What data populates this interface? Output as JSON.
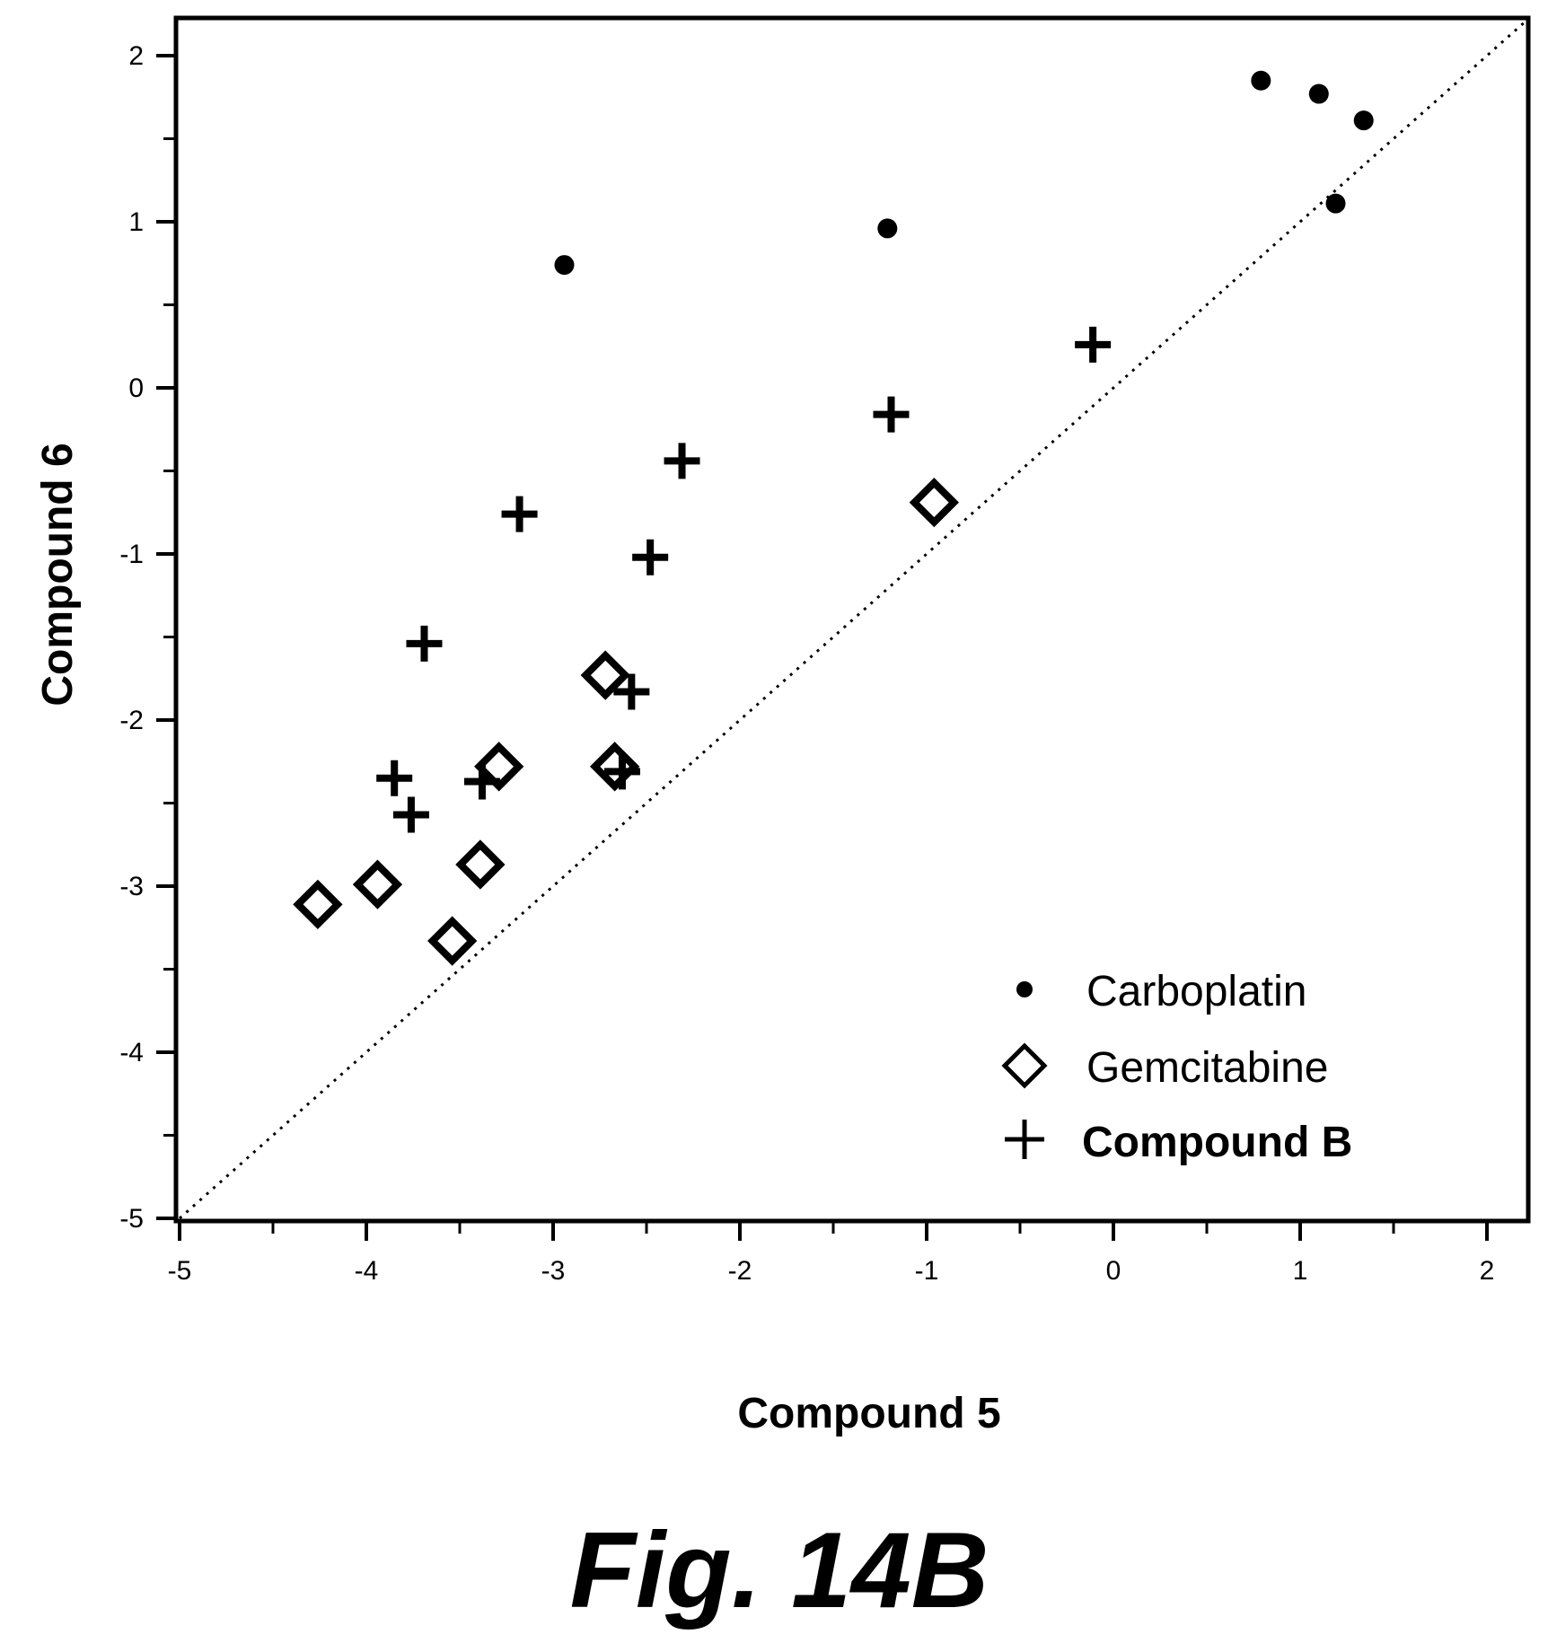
{
  "chart_data": {
    "type": "scatter",
    "xlabel": "Compound 5",
    "ylabel": "Compound 6",
    "xlim": [
      -5,
      2.2
    ],
    "ylim": [
      -5,
      2.2
    ],
    "xticks": [
      -5,
      -4,
      -3,
      -2,
      -1,
      0,
      1,
      2
    ],
    "yticks": [
      -5,
      -4,
      -3,
      -2,
      -1,
      0,
      1,
      2
    ],
    "xtick_labels": [
      "-5",
      "-4",
      "-3",
      "-2",
      "-1",
      "0",
      "1",
      "2"
    ],
    "ytick_labels": [
      "-5",
      "-4",
      "-3",
      "-2",
      "-1",
      "0",
      "1",
      "2"
    ],
    "grid": false,
    "legend_position": "bottom-right",
    "reference_line": "y = x",
    "series": [
      {
        "name": "Carboplatin",
        "marker": "filled-circle",
        "points": [
          [
            0.79,
            1.85
          ],
          [
            1.1,
            1.77
          ],
          [
            1.34,
            1.61
          ],
          [
            1.19,
            1.11
          ],
          [
            -1.21,
            0.96
          ],
          [
            -2.94,
            0.74
          ]
        ]
      },
      {
        "name": "Gemcitabine",
        "marker": "open-diamond",
        "points": [
          [
            -0.96,
            -0.69
          ],
          [
            -2.72,
            -1.73
          ],
          [
            -2.67,
            -2.28
          ],
          [
            -3.29,
            -2.28
          ],
          [
            -3.39,
            -2.87
          ],
          [
            -3.94,
            -2.99
          ],
          [
            -4.26,
            -3.11
          ],
          [
            -3.54,
            -3.33
          ]
        ]
      },
      {
        "name": "Compound B",
        "marker": "plus",
        "points": [
          [
            -0.11,
            0.26
          ],
          [
            -1.19,
            -0.16
          ],
          [
            -2.31,
            -0.44
          ],
          [
            -3.18,
            -0.76
          ],
          [
            -2.48,
            -1.02
          ],
          [
            -3.69,
            -1.54
          ],
          [
            -2.58,
            -1.83
          ],
          [
            -2.63,
            -2.31
          ],
          [
            -3.38,
            -2.37
          ],
          [
            -3.85,
            -2.35
          ],
          [
            -3.76,
            -2.57
          ]
        ]
      }
    ]
  },
  "caption": "Fig. 14B"
}
